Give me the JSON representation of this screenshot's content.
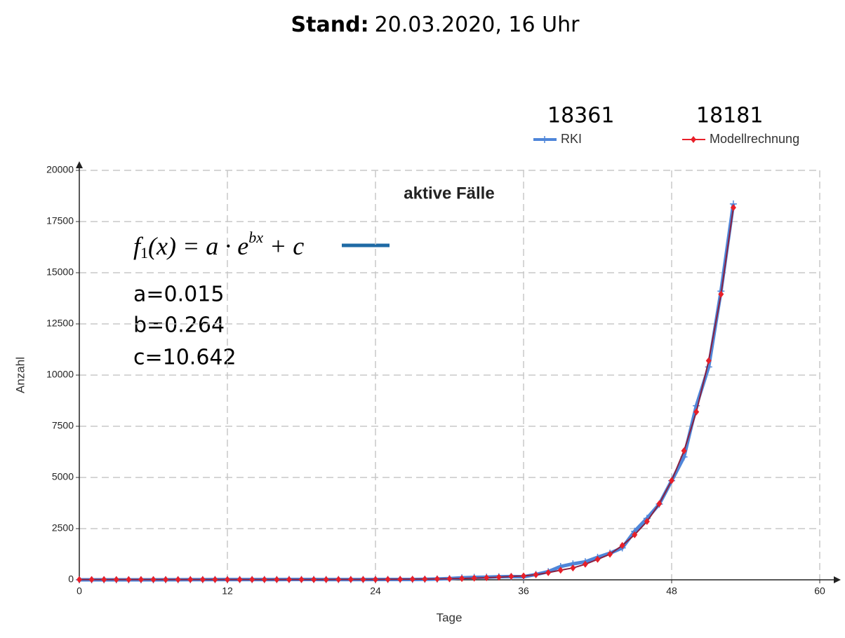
{
  "chart_data": {
    "type": "line",
    "title_label": "Stand:",
    "title_text": "20.03.2020, 16 Uhr",
    "chart_title": "aktive Fälle",
    "xlabel": "Tage",
    "ylabel": "Anzahl",
    "xlim": [
      0,
      60
    ],
    "xticks": [
      0,
      12,
      24,
      36,
      48,
      60
    ],
    "ylim": [
      0,
      20000
    ],
    "yticks": [
      0,
      2500,
      5000,
      7500,
      10000,
      12500,
      15000,
      17500,
      20000
    ],
    "grid": true,
    "legend": "top-right",
    "formula": {
      "f": "f",
      "sub": "1",
      "body": "(x) = a · e",
      "sup": "bx",
      "rest": " + c",
      "color": "#1f6aa5"
    },
    "parameters": [
      "a=0.015",
      "b=0.264",
      "c=10.642"
    ],
    "x": [
      0,
      1,
      2,
      3,
      4,
      5,
      6,
      7,
      8,
      9,
      10,
      11,
      12,
      13,
      14,
      15,
      16,
      17,
      18,
      19,
      20,
      21,
      22,
      23,
      24,
      25,
      26,
      27,
      28,
      29,
      30,
      31,
      32,
      33,
      34,
      35,
      36,
      37,
      38,
      39,
      40,
      41,
      42,
      43,
      44,
      45,
      46,
      47,
      48,
      49,
      50,
      51,
      52,
      53
    ],
    "series": [
      {
        "name": "RKI",
        "color": "#4f86d9",
        "values": [
          1,
          1,
          1,
          1,
          1,
          2,
          2,
          4,
          5,
          8,
          10,
          12,
          12,
          12,
          14,
          14,
          14,
          15,
          15,
          15,
          14,
          14,
          14,
          14,
          15,
          15,
          16,
          18,
          25,
          40,
          60,
          100,
          120,
          130,
          150,
          160,
          150,
          260,
          400,
          650,
          780,
          880,
          1100,
          1300,
          1560,
          2370,
          3000,
          3700,
          4840,
          6000,
          8500,
          10400,
          14100,
          18361
        ]
      },
      {
        "name": "Modellrechnung",
        "color": "#e8202a",
        "values": [
          11,
          11,
          11,
          11,
          11,
          11,
          11,
          11,
          11,
          11,
          11,
          11,
          11,
          11,
          11,
          11,
          11,
          12,
          12,
          13,
          14,
          15,
          16,
          17,
          19,
          22,
          25,
          29,
          35,
          42,
          52,
          64,
          81,
          101,
          129,
          165,
          190,
          250,
          350,
          470,
          580,
          760,
          1000,
          1250,
          1680,
          2200,
          2850,
          3720,
          4850,
          6300,
          8200,
          10700,
          13950,
          18181
        ]
      }
    ]
  }
}
